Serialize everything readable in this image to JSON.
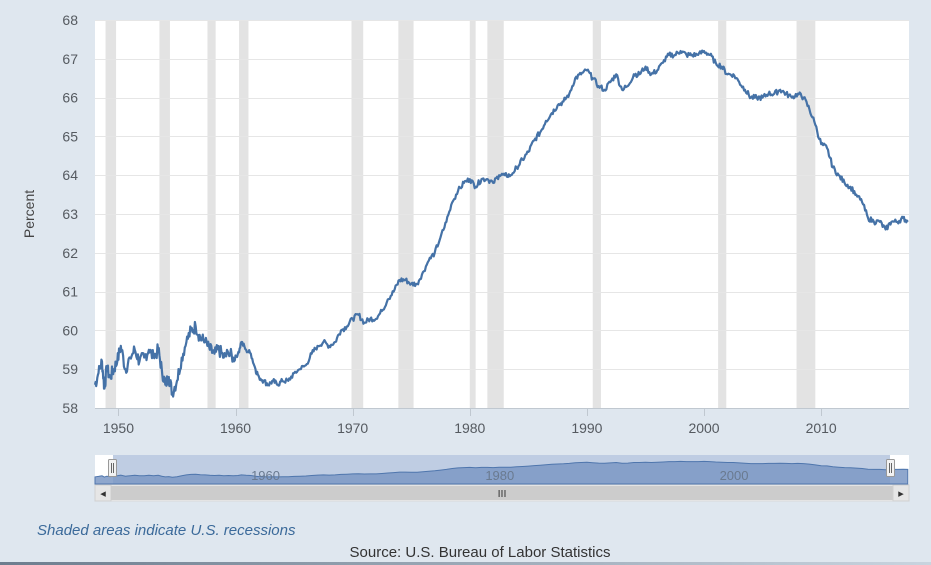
{
  "chart_data": {
    "type": "line",
    "title": "",
    "xlabel": "",
    "ylabel": "Percent",
    "xlim": [
      1948,
      2017.5
    ],
    "ylim": [
      58,
      68
    ],
    "yticks": [
      58,
      59,
      60,
      61,
      62,
      63,
      64,
      65,
      66,
      67,
      68
    ],
    "xticks": [
      1950,
      1960,
      1970,
      1980,
      1990,
      2000,
      2010
    ],
    "grid": true,
    "legend": "none",
    "line_color": "#4572a7",
    "recession_color": "#e3e3e3",
    "recessions": [
      [
        1948.9,
        1949.8
      ],
      [
        1953.5,
        1954.4
      ],
      [
        1957.6,
        1958.3
      ],
      [
        1960.3,
        1961.1
      ],
      [
        1969.9,
        1970.9
      ],
      [
        1973.9,
        1975.2
      ],
      [
        1980.0,
        1980.5
      ],
      [
        1981.5,
        1982.9
      ],
      [
        1990.5,
        1991.2
      ],
      [
        2001.2,
        2001.9
      ],
      [
        2007.9,
        2009.5
      ]
    ],
    "series": [
      {
        "values": [
          [
            1948.0,
            58.6
          ],
          [
            1948.3,
            58.9
          ],
          [
            1948.6,
            59.2
          ],
          [
            1948.8,
            58.5
          ],
          [
            1949.0,
            59.0
          ],
          [
            1949.3,
            58.8
          ],
          [
            1949.6,
            59.0
          ],
          [
            1949.9,
            59.2
          ],
          [
            1950.2,
            59.6
          ],
          [
            1950.6,
            59.0
          ],
          [
            1951.0,
            59.3
          ],
          [
            1951.4,
            59.5
          ],
          [
            1951.8,
            59.2
          ],
          [
            1952.2,
            59.3
          ],
          [
            1952.6,
            59.5
          ],
          [
            1953.0,
            59.3
          ],
          [
            1953.4,
            59.5
          ],
          [
            1953.7,
            59.0
          ],
          [
            1954.0,
            58.6
          ],
          [
            1954.3,
            58.8
          ],
          [
            1954.6,
            58.4
          ],
          [
            1955.0,
            58.7
          ],
          [
            1955.4,
            59.3
          ],
          [
            1955.8,
            59.7
          ],
          [
            1956.2,
            60.0
          ],
          [
            1956.6,
            60.1
          ],
          [
            1957.0,
            59.8
          ],
          [
            1957.4,
            59.7
          ],
          [
            1957.8,
            59.5
          ],
          [
            1958.2,
            59.4
          ],
          [
            1958.6,
            59.5
          ],
          [
            1959.0,
            59.3
          ],
          [
            1959.4,
            59.4
          ],
          [
            1959.8,
            59.3
          ],
          [
            1960.2,
            59.4
          ],
          [
            1960.5,
            59.7
          ],
          [
            1960.9,
            59.5
          ],
          [
            1961.3,
            59.4
          ],
          [
            1961.7,
            59.0
          ],
          [
            1962.0,
            58.8
          ],
          [
            1962.4,
            58.7
          ],
          [
            1962.8,
            58.6
          ],
          [
            1963.2,
            58.7
          ],
          [
            1963.6,
            58.6
          ],
          [
            1964.0,
            58.7
          ],
          [
            1964.5,
            58.7
          ],
          [
            1965.0,
            58.9
          ],
          [
            1965.5,
            59.0
          ],
          [
            1966.0,
            59.1
          ],
          [
            1966.5,
            59.4
          ],
          [
            1967.0,
            59.6
          ],
          [
            1967.5,
            59.7
          ],
          [
            1968.0,
            59.6
          ],
          [
            1968.5,
            59.7
          ],
          [
            1969.0,
            60.0
          ],
          [
            1969.5,
            60.1
          ],
          [
            1970.0,
            60.3
          ],
          [
            1970.5,
            60.4
          ],
          [
            1971.0,
            60.2
          ],
          [
            1971.5,
            60.3
          ],
          [
            1972.0,
            60.3
          ],
          [
            1972.5,
            60.5
          ],
          [
            1973.0,
            60.8
          ],
          [
            1973.5,
            61.0
          ],
          [
            1974.0,
            61.3
          ],
          [
            1974.5,
            61.3
          ],
          [
            1975.0,
            61.2
          ],
          [
            1975.5,
            61.2
          ],
          [
            1976.0,
            61.5
          ],
          [
            1976.5,
            61.8
          ],
          [
            1977.0,
            62.0
          ],
          [
            1977.5,
            62.4
          ],
          [
            1978.0,
            62.8
          ],
          [
            1978.5,
            63.3
          ],
          [
            1979.0,
            63.6
          ],
          [
            1979.5,
            63.8
          ],
          [
            1980.0,
            63.9
          ],
          [
            1980.5,
            63.7
          ],
          [
            1981.0,
            63.9
          ],
          [
            1981.5,
            63.9
          ],
          [
            1982.0,
            63.8
          ],
          [
            1982.5,
            64.0
          ],
          [
            1983.0,
            64.0
          ],
          [
            1983.5,
            64.0
          ],
          [
            1984.0,
            64.2
          ],
          [
            1984.5,
            64.4
          ],
          [
            1985.0,
            64.6
          ],
          [
            1985.5,
            64.9
          ],
          [
            1986.0,
            65.1
          ],
          [
            1986.5,
            65.4
          ],
          [
            1987.0,
            65.6
          ],
          [
            1987.5,
            65.8
          ],
          [
            1988.0,
            65.9
          ],
          [
            1988.5,
            66.1
          ],
          [
            1989.0,
            66.5
          ],
          [
            1989.5,
            66.6
          ],
          [
            1990.0,
            66.7
          ],
          [
            1990.5,
            66.5
          ],
          [
            1991.0,
            66.3
          ],
          [
            1991.5,
            66.2
          ],
          [
            1992.0,
            66.4
          ],
          [
            1992.5,
            66.6
          ],
          [
            1993.0,
            66.2
          ],
          [
            1993.5,
            66.3
          ],
          [
            1994.0,
            66.6
          ],
          [
            1994.5,
            66.6
          ],
          [
            1995.0,
            66.8
          ],
          [
            1995.5,
            66.6
          ],
          [
            1996.0,
            66.7
          ],
          [
            1996.5,
            66.9
          ],
          [
            1997.0,
            67.1
          ],
          [
            1997.5,
            67.1
          ],
          [
            1998.0,
            67.2
          ],
          [
            1998.5,
            67.1
          ],
          [
            1999.0,
            67.1
          ],
          [
            1999.5,
            67.1
          ],
          [
            2000.0,
            67.2
          ],
          [
            2000.5,
            67.1
          ],
          [
            2001.0,
            66.9
          ],
          [
            2001.5,
            66.8
          ],
          [
            2002.0,
            66.6
          ],
          [
            2002.5,
            66.6
          ],
          [
            2003.0,
            66.4
          ],
          [
            2003.5,
            66.2
          ],
          [
            2004.0,
            66.0
          ],
          [
            2004.5,
            66.0
          ],
          [
            2005.0,
            66.0
          ],
          [
            2005.5,
            66.1
          ],
          [
            2006.0,
            66.1
          ],
          [
            2006.5,
            66.2
          ],
          [
            2007.0,
            66.1
          ],
          [
            2007.5,
            66.0
          ],
          [
            2008.0,
            66.1
          ],
          [
            2008.5,
            66.0
          ],
          [
            2009.0,
            65.7
          ],
          [
            2009.5,
            65.3
          ],
          [
            2010.0,
            64.8
          ],
          [
            2010.5,
            64.7
          ],
          [
            2011.0,
            64.2
          ],
          [
            2011.5,
            64.0
          ],
          [
            2012.0,
            63.8
          ],
          [
            2012.5,
            63.7
          ],
          [
            2013.0,
            63.5
          ],
          [
            2013.5,
            63.3
          ],
          [
            2014.0,
            62.9
          ],
          [
            2014.5,
            62.8
          ],
          [
            2015.0,
            62.8
          ],
          [
            2015.5,
            62.6
          ],
          [
            2016.0,
            62.8
          ],
          [
            2016.5,
            62.8
          ],
          [
            2017.0,
            62.9
          ],
          [
            2017.4,
            62.8
          ]
        ]
      }
    ]
  },
  "navigator": {
    "labels": [
      "1960",
      "1980",
      "2000"
    ],
    "label_years": [
      1960,
      1980,
      2000
    ],
    "scrollbar_grip": "III",
    "left_arrow": "◂",
    "right_arrow": "▸"
  },
  "footer": {
    "note": "Shaded areas indicate U.S. recessions",
    "source": "Source: U.S. Bureau of Labor Statistics"
  }
}
